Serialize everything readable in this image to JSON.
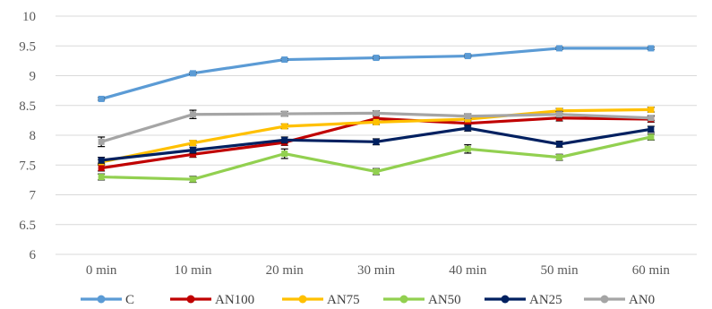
{
  "chart_data": {
    "type": "line",
    "title": "",
    "xlabel": "",
    "ylabel": "",
    "categories": [
      "0 min",
      "10 min",
      "20 min",
      "30 min",
      "40 min",
      "50 min",
      "60 min"
    ],
    "ylim": [
      6,
      10
    ],
    "yticks": [
      "6",
      "6.5",
      "7",
      "7.5",
      "8",
      "8.5",
      "9",
      "9.5",
      "10"
    ],
    "grid": true,
    "legend_position": "bottom",
    "error_bars": true,
    "series": [
      {
        "name": "C",
        "color": "#5b9bd5",
        "marker": "square",
        "values": [
          8.61,
          9.04,
          9.27,
          9.3,
          9.33,
          9.46,
          9.46
        ],
        "errors": [
          0.02,
          0.02,
          0.02,
          0.02,
          0.02,
          0.02,
          0.02
        ]
      },
      {
        "name": "AN100",
        "color": "#c00000",
        "marker": "diamond",
        "values": [
          7.45,
          7.68,
          7.88,
          8.28,
          8.2,
          8.29,
          8.27
        ],
        "errors": [
          0.05,
          0.05,
          0.05,
          0.05,
          0.05,
          0.05,
          0.05
        ]
      },
      {
        "name": "AN75",
        "color": "#ffc000",
        "marker": "triangle",
        "values": [
          7.55,
          7.87,
          8.15,
          8.22,
          8.27,
          8.41,
          8.43
        ],
        "errors": [
          0.04,
          0.04,
          0.04,
          0.04,
          0.04,
          0.04,
          0.04
        ]
      },
      {
        "name": "AN50",
        "color": "#92d050",
        "marker": "x",
        "values": [
          7.3,
          7.26,
          7.69,
          7.39,
          7.77,
          7.63,
          7.97
        ],
        "errors": [
          0.05,
          0.05,
          0.08,
          0.05,
          0.07,
          0.05,
          0.05
        ]
      },
      {
        "name": "AN25",
        "color": "#002060",
        "marker": "asterisk",
        "values": [
          7.58,
          7.75,
          7.92,
          7.89,
          8.12,
          7.85,
          8.1
        ],
        "errors": [
          0.05,
          0.05,
          0.05,
          0.05,
          0.05,
          0.05,
          0.05
        ]
      },
      {
        "name": "AN0",
        "color": "#a5a5a5",
        "marker": "circle",
        "values": [
          7.89,
          8.35,
          8.36,
          8.37,
          8.32,
          8.35,
          8.29
        ],
        "errors": [
          0.08,
          0.07,
          0.04,
          0.04,
          0.04,
          0.05,
          0.04
        ]
      }
    ]
  }
}
